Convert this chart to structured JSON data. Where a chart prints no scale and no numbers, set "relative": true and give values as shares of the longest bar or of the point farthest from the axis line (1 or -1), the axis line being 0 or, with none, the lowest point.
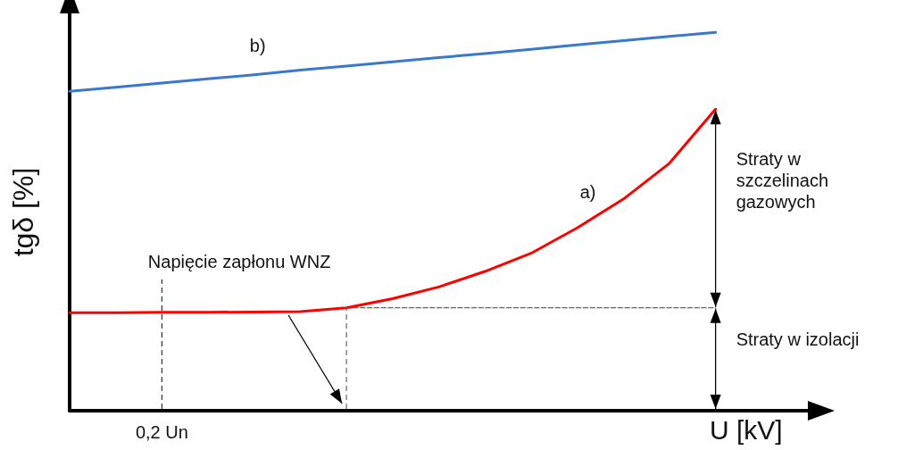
{
  "chart_data": {
    "type": "line",
    "relative": true,
    "xlabel": "U [kV]",
    "ylabel": "tgδ [%]",
    "marker": "none",
    "grid": false,
    "categories": [
      null,
      null,
      null,
      null,
      null,
      null,
      null,
      null,
      null,
      null,
      null,
      null,
      null,
      null,
      null
    ],
    "series": [
      {
        "color": "#ff0000",
        "values": [
          0.259,
          0.259,
          0.26,
          0.26,
          0.261,
          0.262,
          0.272,
          0.296,
          0.327,
          0.368,
          0.416,
          0.483,
          0.559,
          0.654,
          0.797
        ]
      },
      {
        "color": "#3a78d0",
        "values": [
          0.844,
          0.855,
          0.866,
          0.877,
          0.888,
          0.9,
          0.911,
          0.922,
          0.933,
          0.944,
          0.955,
          0.967,
          0.978,
          0.989,
          1
        ]
      },
      {
        "color": "#666666",
        "line_style": "dashed",
        "values": [
          null,
          null,
          null,
          null,
          null,
          null,
          0.272,
          0.272,
          0.272,
          0.272,
          0.272,
          0.272,
          0.272,
          0.272,
          0.272
        ]
      }
    ],
    "annotations": [
      "a)",
      "b)",
      "Napięcie zapłonu WNZ",
      "Straty w szczelinach gazowych",
      "Straty w izolacji",
      "0,2 Un"
    ]
  }
}
